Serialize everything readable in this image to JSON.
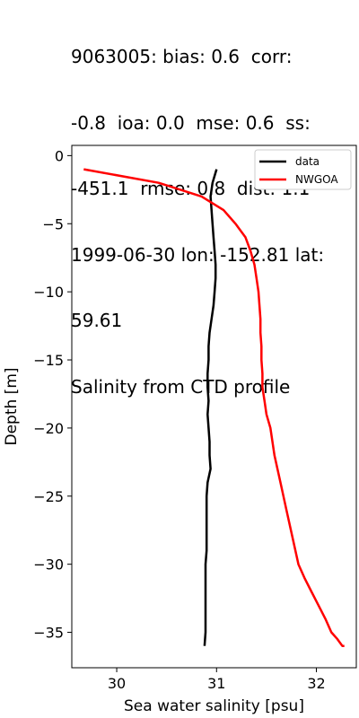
{
  "chart_data": {
    "type": "line",
    "title_lines": [
      "9063005: bias: 0.6  corr:",
      "-0.8  ioa: 0.0  mse: 0.6  ss:",
      "-451.1  rmse: 0.8  dist: 1.1",
      "1999-06-30 lon: -152.81 lat:",
      "59.61",
      "Salinity from CTD profile"
    ],
    "xlabel": "Sea water salinity [psu]",
    "ylabel": "Depth [m]",
    "xlim": [
      29.55,
      32.4
    ],
    "ylim": [
      -37.6,
      0.75
    ],
    "xticks": [
      30,
      31,
      32
    ],
    "yticks": [
      0,
      -5,
      -10,
      -15,
      -20,
      -25,
      -30,
      -35
    ],
    "legend_position": "upper right",
    "grid": false,
    "series": [
      {
        "name": "data",
        "color": "#000000",
        "x": [
          31.0,
          30.96,
          30.94,
          30.95,
          30.96,
          30.97,
          30.98,
          30.99,
          30.99,
          30.98,
          30.97,
          30.95,
          30.93,
          30.92,
          30.92,
          30.91,
          30.91,
          30.92,
          30.91,
          30.92,
          30.93,
          30.93,
          30.94,
          30.91,
          30.9,
          30.9,
          30.9,
          30.9,
          30.9,
          30.89,
          30.89,
          30.89,
          30.89,
          30.89,
          30.89,
          30.88,
          30.88
        ],
        "y": [
          -1,
          -2,
          -3,
          -4,
          -5,
          -6,
          -7,
          -8,
          -9,
          -10,
          -11,
          -12,
          -13,
          -14,
          -15,
          -16,
          -17,
          -18,
          -19,
          -20,
          -21,
          -22,
          -23,
          -24,
          -25,
          -26,
          -27,
          -28,
          -29,
          -30,
          -31,
          -32,
          -33,
          -34,
          -35,
          -36,
          -36
        ]
      },
      {
        "name": "NWGOA",
        "color": "#ff0000",
        "x": [
          29.67,
          30.42,
          30.85,
          31.07,
          31.19,
          31.29,
          31.34,
          31.38,
          31.4,
          31.42,
          31.43,
          31.44,
          31.44,
          31.45,
          31.45,
          31.46,
          31.46,
          31.48,
          31.5,
          31.54,
          31.58,
          31.64,
          31.7,
          31.76,
          31.82,
          31.88,
          31.95,
          32.02,
          32.09,
          32.15,
          32.21,
          32.26,
          32.28
        ],
        "y": [
          -1,
          -2,
          -3,
          -4,
          -5,
          -6,
          -7,
          -8,
          -9,
          -10,
          -11,
          -12,
          -13,
          -14,
          -15,
          -16,
          -17,
          -18,
          -19,
          -20,
          -22,
          -24,
          -26,
          -28,
          -30,
          -31,
          -32,
          -33,
          -34,
          -35,
          -35.5,
          -36,
          -36
        ]
      }
    ]
  }
}
